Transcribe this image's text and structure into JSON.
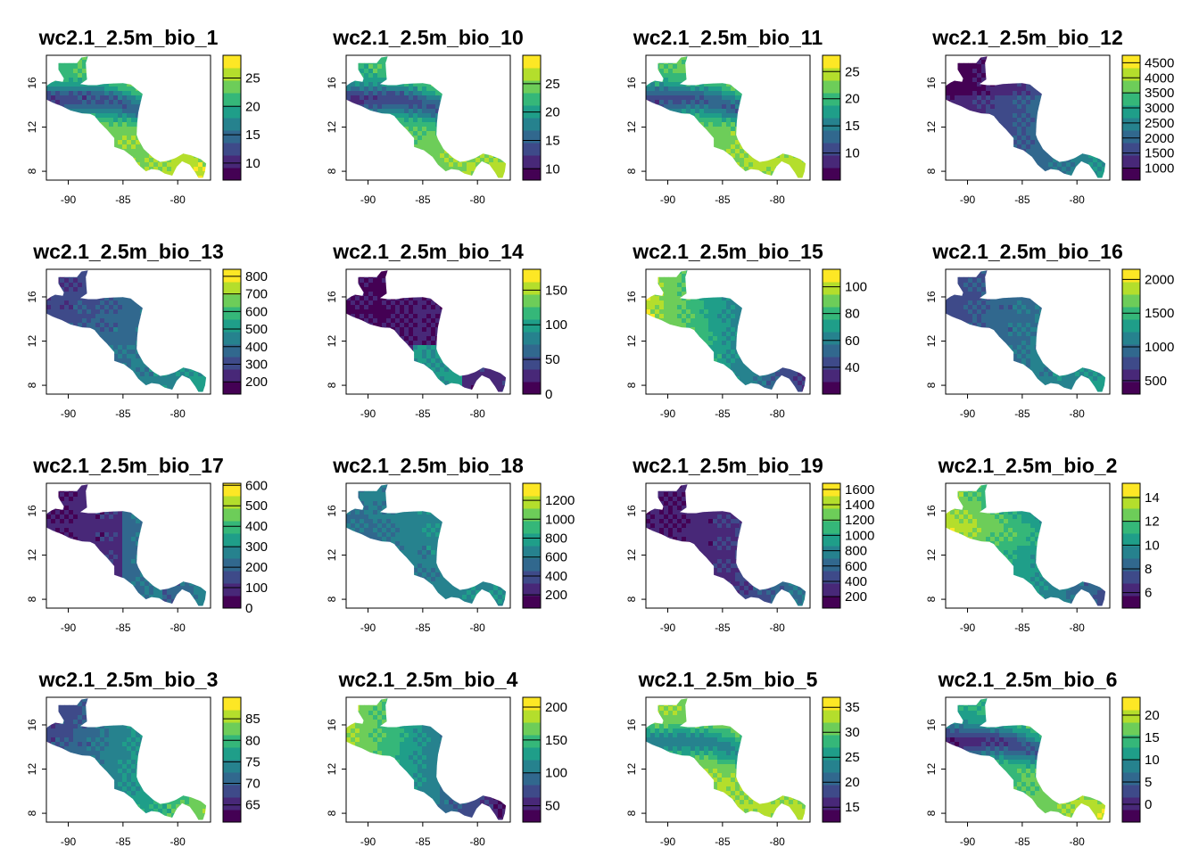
{
  "figure": {
    "layout": {
      "rows": 4,
      "cols": 4
    },
    "x_ticks": [
      -90,
      -85,
      -80
    ],
    "y_ticks": [
      8,
      12,
      16
    ],
    "x_range": [
      -92,
      -77
    ],
    "y_range": [
      7.2,
      18.5
    ],
    "palette": "viridis",
    "palette_colors": [
      "#440154",
      "#482878",
      "#3E4A89",
      "#31688E",
      "#26828E",
      "#1F9E89",
      "#35B779",
      "#6DCD59",
      "#B4DE2C",
      "#FDE725"
    ]
  },
  "chart_data": [
    {
      "type": "heatmap",
      "title": "wc2.1_2.5m_bio_1",
      "legend_range": [
        7,
        29
      ],
      "legend_ticks": [
        10,
        15,
        20,
        25
      ]
    },
    {
      "type": "heatmap",
      "title": "wc2.1_2.5m_bio_10",
      "legend_range": [
        8,
        30
      ],
      "legend_ticks": [
        10,
        15,
        20,
        25
      ]
    },
    {
      "type": "heatmap",
      "title": "wc2.1_2.5m_bio_11",
      "legend_range": [
        5,
        28
      ],
      "legend_ticks": [
        10,
        15,
        20,
        25
      ]
    },
    {
      "type": "heatmap",
      "title": "wc2.1_2.5m_bio_12",
      "legend_range": [
        600,
        4750
      ],
      "legend_ticks": [
        1000,
        1500,
        2000,
        2500,
        3000,
        3500,
        4000,
        4500
      ]
    },
    {
      "type": "heatmap",
      "title": "wc2.1_2.5m_bio_13",
      "legend_range": [
        130,
        840
      ],
      "legend_ticks": [
        200,
        300,
        400,
        500,
        600,
        700,
        800
      ]
    },
    {
      "type": "heatmap",
      "title": "wc2.1_2.5m_bio_14",
      "legend_range": [
        0,
        180
      ],
      "legend_ticks": [
        0,
        50,
        100,
        150
      ]
    },
    {
      "type": "heatmap",
      "title": "wc2.1_2.5m_bio_15",
      "legend_range": [
        20,
        113
      ],
      "legend_ticks": [
        40,
        60,
        80,
        100
      ]
    },
    {
      "type": "heatmap",
      "title": "wc2.1_2.5m_bio_16",
      "legend_range": [
        300,
        2150
      ],
      "legend_ticks": [
        500,
        1000,
        1500,
        2000
      ]
    },
    {
      "type": "heatmap",
      "title": "wc2.1_2.5m_bio_17",
      "legend_range": [
        0,
        610
      ],
      "legend_ticks": [
        0,
        100,
        200,
        300,
        400,
        500,
        600
      ]
    },
    {
      "type": "heatmap",
      "title": "wc2.1_2.5m_bio_18",
      "legend_range": [
        60,
        1380
      ],
      "legend_ticks": [
        200,
        400,
        600,
        800,
        1000,
        1200
      ]
    },
    {
      "type": "heatmap",
      "title": "wc2.1_2.5m_bio_19",
      "legend_range": [
        50,
        1680
      ],
      "legend_ticks": [
        200,
        400,
        600,
        800,
        1000,
        1200,
        1400,
        1600
      ]
    },
    {
      "type": "heatmap",
      "title": "wc2.1_2.5m_bio_2",
      "legend_range": [
        4.7,
        15.2
      ],
      "legend_ticks": [
        6,
        8,
        10,
        12,
        14
      ]
    },
    {
      "type": "heatmap",
      "title": "wc2.1_2.5m_bio_3",
      "legend_range": [
        61,
        90
      ],
      "legend_ticks": [
        65,
        70,
        75,
        80,
        85
      ]
    },
    {
      "type": "heatmap",
      "title": "wc2.1_2.5m_bio_4",
      "legend_range": [
        25,
        215
      ],
      "legend_ticks": [
        50,
        100,
        150,
        200
      ]
    },
    {
      "type": "heatmap",
      "title": "wc2.1_2.5m_bio_5",
      "legend_range": [
        12,
        37
      ],
      "legend_ticks": [
        15,
        20,
        25,
        30,
        35
      ]
    },
    {
      "type": "heatmap",
      "title": "wc2.1_2.5m_bio_6",
      "legend_range": [
        -4,
        24
      ],
      "legend_ticks": [
        0,
        5,
        10,
        15,
        20
      ]
    }
  ]
}
